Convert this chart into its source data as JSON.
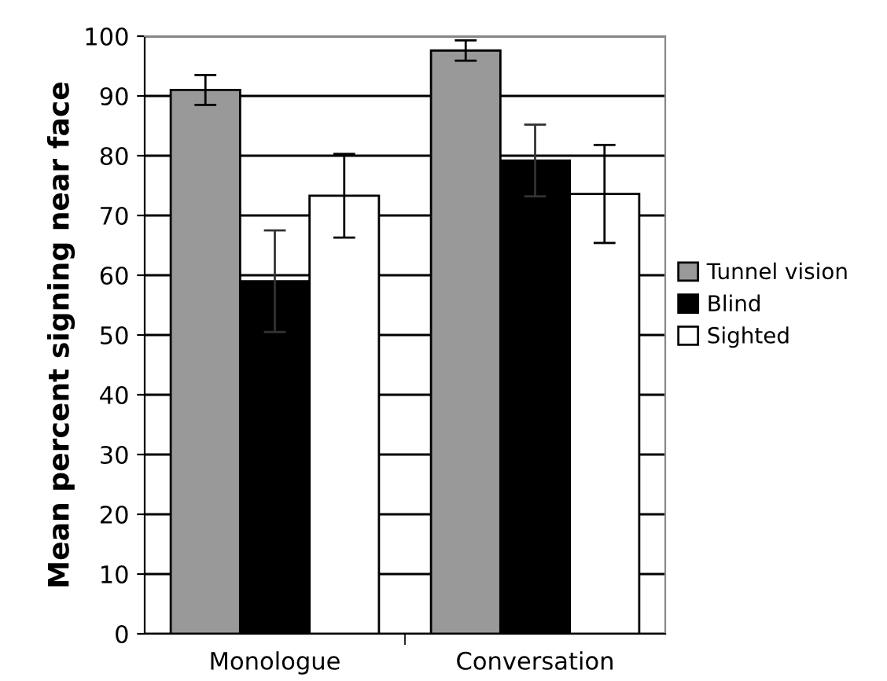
{
  "chart_data": {
    "type": "bar",
    "ylabel": "Mean percent signing near face",
    "categories": [
      "Monologue",
      "Conversation"
    ],
    "series": [
      {
        "name": "Tunnel vision",
        "color": "#999999",
        "values": [
          91,
          97.6
        ],
        "errors": [
          2.5,
          1.7
        ]
      },
      {
        "name": "Blind",
        "color": "#000000",
        "values": [
          59,
          79.2
        ],
        "errors": [
          8.5,
          6
        ]
      },
      {
        "name": "Sighted",
        "color": "#ffffff",
        "values": [
          73.3,
          73.6
        ],
        "errors": [
          7,
          8.2
        ]
      }
    ],
    "ylim": [
      0,
      100
    ],
    "yticks": [
      0,
      10,
      20,
      30,
      40,
      50,
      60,
      70,
      80,
      90,
      100
    ],
    "grid": "y",
    "legend": "right"
  }
}
